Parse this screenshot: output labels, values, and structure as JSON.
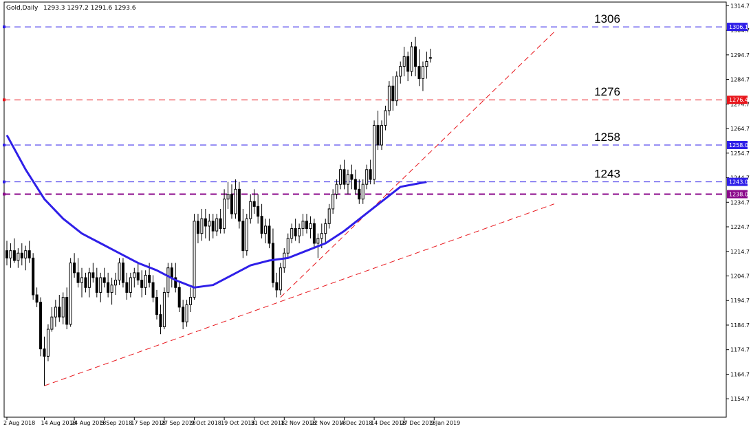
{
  "header": {
    "symbol": "Gold,Daily",
    "ohlc": "1293.3 1297.2 1291.6 1293.6"
  },
  "chart_data": {
    "type": "candlestick",
    "title": "Gold,Daily",
    "ylim": [
      1147.2,
      1316.2
    ],
    "grid": false,
    "y_ticks": [
      "1314.7",
      "1304.7",
      "1294.7",
      "1284.7",
      "1274.7",
      "1264.7",
      "1254.7",
      "1244.7",
      "1234.7",
      "1224.7",
      "1214.7",
      "1204.7",
      "1194.7",
      "1184.7",
      "1174.7",
      "1164.7",
      "1154.7"
    ],
    "x_ticks": [
      {
        "label": "2 Aug 2018",
        "bar": 0
      },
      {
        "label": "14 Aug 2018",
        "bar": 10
      },
      {
        "label": "24 Aug 2018",
        "bar": 18
      },
      {
        "label": "5 Sep 2018",
        "bar": 26
      },
      {
        "label": "17 Sep 2018",
        "bar": 34
      },
      {
        "label": "27 Sep 2018",
        "bar": 42
      },
      {
        "label": "9 Oct 2018",
        "bar": 50
      },
      {
        "label": "19 Oct 2018",
        "bar": 58
      },
      {
        "label": "31 Oct 2018",
        "bar": 66
      },
      {
        "label": "12 Nov 2018",
        "bar": 74
      },
      {
        "label": "22 Nov 2018",
        "bar": 82
      },
      {
        "label": "4 Dec 2018",
        "bar": 90
      },
      {
        "label": "14 Dec 2018",
        "bar": 98
      },
      {
        "label": "27 Dec 2018",
        "bar": 106
      },
      {
        "label": "9 Jan 2019",
        "bar": 114
      }
    ],
    "candles": [
      [
        1215,
        1219,
        1209,
        1212
      ],
      [
        1212,
        1218,
        1208,
        1215
      ],
      [
        1215,
        1220,
        1210,
        1211
      ],
      [
        1211,
        1216,
        1208,
        1214
      ],
      [
        1214,
        1218,
        1209,
        1212
      ],
      [
        1212,
        1217,
        1207,
        1215
      ],
      [
        1215,
        1219,
        1210,
        1212
      ],
      [
        1212,
        1214,
        1195,
        1197
      ],
      [
        1197,
        1200,
        1192,
        1194
      ],
      [
        1194,
        1196,
        1172,
        1175
      ],
      [
        1175,
        1180,
        1160,
        1172
      ],
      [
        1172,
        1185,
        1170,
        1183
      ],
      [
        1183,
        1192,
        1182,
        1188
      ],
      [
        1188,
        1195,
        1184,
        1192
      ],
      [
        1192,
        1197,
        1186,
        1188
      ],
      [
        1188,
        1198,
        1185,
        1196
      ],
      [
        1196,
        1200,
        1183,
        1185
      ],
      [
        1185,
        1212,
        1184,
        1210
      ],
      [
        1210,
        1214,
        1204,
        1206
      ],
      [
        1206,
        1212,
        1200,
        1202
      ],
      [
        1202,
        1208,
        1196,
        1204
      ],
      [
        1204,
        1206,
        1198,
        1200
      ],
      [
        1200,
        1208,
        1196,
        1206
      ],
      [
        1206,
        1210,
        1202,
        1204
      ],
      [
        1204,
        1208,
        1196,
        1198
      ],
      [
        1198,
        1206,
        1194,
        1204
      ],
      [
        1204,
        1208,
        1200,
        1202
      ],
      [
        1202,
        1206,
        1196,
        1198
      ],
      [
        1198,
        1204,
        1193,
        1201
      ],
      [
        1201,
        1206,
        1197,
        1203
      ],
      [
        1203,
        1212,
        1201,
        1210
      ],
      [
        1210,
        1212,
        1200,
        1202
      ],
      [
        1202,
        1206,
        1195,
        1198
      ],
      [
        1198,
        1206,
        1196,
        1204
      ],
      [
        1204,
        1208,
        1200,
        1206
      ],
      [
        1206,
        1210,
        1201,
        1203
      ],
      [
        1203,
        1207,
        1196,
        1200
      ],
      [
        1200,
        1207,
        1197,
        1205
      ],
      [
        1205,
        1210,
        1200,
        1202
      ],
      [
        1202,
        1205,
        1194,
        1196
      ],
      [
        1196,
        1199,
        1187,
        1189
      ],
      [
        1189,
        1193,
        1181,
        1184
      ],
      [
        1184,
        1200,
        1183,
        1198
      ],
      [
        1198,
        1210,
        1196,
        1208
      ],
      [
        1208,
        1210,
        1200,
        1204
      ],
      [
        1204,
        1210,
        1198,
        1200
      ],
      [
        1200,
        1202,
        1190,
        1192
      ],
      [
        1192,
        1195,
        1183,
        1186
      ],
      [
        1186,
        1195,
        1184,
        1193
      ],
      [
        1193,
        1200,
        1190,
        1196
      ],
      [
        1196,
        1230,
        1195,
        1227
      ],
      [
        1227,
        1230,
        1218,
        1222
      ],
      [
        1222,
        1232,
        1219,
        1228
      ],
      [
        1228,
        1232,
        1220,
        1225
      ],
      [
        1225,
        1230,
        1219,
        1227
      ],
      [
        1227,
        1230,
        1220,
        1223
      ],
      [
        1223,
        1230,
        1221,
        1228
      ],
      [
        1228,
        1232,
        1222,
        1224
      ],
      [
        1224,
        1240,
        1222,
        1236
      ],
      [
        1236,
        1243,
        1232,
        1238
      ],
      [
        1238,
        1242,
        1228,
        1230
      ],
      [
        1230,
        1244,
        1228,
        1240
      ],
      [
        1240,
        1243,
        1224,
        1227
      ],
      [
        1227,
        1232,
        1212,
        1215
      ],
      [
        1215,
        1230,
        1213,
        1228
      ],
      [
        1228,
        1238,
        1226,
        1235
      ],
      [
        1235,
        1240,
        1230,
        1233
      ],
      [
        1233,
        1238,
        1226,
        1229
      ],
      [
        1229,
        1234,
        1220,
        1222
      ],
      [
        1222,
        1228,
        1218,
        1225
      ],
      [
        1225,
        1228,
        1216,
        1218
      ],
      [
        1218,
        1224,
        1200,
        1202
      ],
      [
        1202,
        1206,
        1196,
        1199
      ],
      [
        1199,
        1210,
        1197,
        1208
      ],
      [
        1208,
        1216,
        1206,
        1214
      ],
      [
        1214,
        1222,
        1212,
        1220
      ],
      [
        1220,
        1226,
        1218,
        1224
      ],
      [
        1224,
        1228,
        1219,
        1221
      ],
      [
        1221,
        1226,
        1218,
        1224
      ],
      [
        1224,
        1230,
        1221,
        1227
      ],
      [
        1227,
        1230,
        1222,
        1224
      ],
      [
        1224,
        1229,
        1220,
        1226
      ],
      [
        1226,
        1228,
        1216,
        1218
      ],
      [
        1218,
        1222,
        1212,
        1220
      ],
      [
        1220,
        1226,
        1216,
        1222
      ],
      [
        1222,
        1228,
        1218,
        1226
      ],
      [
        1226,
        1234,
        1224,
        1232
      ],
      [
        1232,
        1240,
        1230,
        1238
      ],
      [
        1238,
        1244,
        1236,
        1242
      ],
      [
        1242,
        1250,
        1240,
        1248
      ],
      [
        1248,
        1252,
        1240,
        1242
      ],
      [
        1242,
        1248,
        1238,
        1246
      ],
      [
        1246,
        1250,
        1240,
        1244
      ],
      [
        1244,
        1248,
        1238,
        1240
      ],
      [
        1240,
        1244,
        1234,
        1236
      ],
      [
        1236,
        1244,
        1234,
        1242
      ],
      [
        1242,
        1250,
        1240,
        1248
      ],
      [
        1248,
        1252,
        1242,
        1244
      ],
      [
        1244,
        1268,
        1242,
        1266
      ],
      [
        1266,
        1272,
        1256,
        1258
      ],
      [
        1258,
        1268,
        1256,
        1266
      ],
      [
        1266,
        1274,
        1264,
        1272
      ],
      [
        1272,
        1284,
        1270,
        1282
      ],
      [
        1282,
        1286,
        1272,
        1276
      ],
      [
        1276,
        1288,
        1274,
        1286
      ],
      [
        1286,
        1292,
        1283,
        1290
      ],
      [
        1290,
        1298,
        1286,
        1294
      ],
      [
        1294,
        1296,
        1284,
        1288
      ],
      [
        1288,
        1300,
        1286,
        1298
      ],
      [
        1298,
        1302,
        1286,
        1290
      ],
      [
        1290,
        1297,
        1282,
        1285
      ],
      [
        1285,
        1292,
        1280,
        1290
      ],
      [
        1290,
        1296,
        1285,
        1292
      ],
      [
        1293.3,
        1297.2,
        1291.6,
        1293.6
      ]
    ],
    "ma_series": {
      "name": "",
      "color": "#2f1fe8",
      "values": [
        [
          0,
          1262
        ],
        [
          5,
          1248
        ],
        [
          10,
          1236
        ],
        [
          15,
          1228
        ],
        [
          20,
          1222
        ],
        [
          25,
          1218
        ],
        [
          30,
          1214
        ],
        [
          35,
          1210
        ],
        [
          40,
          1207
        ],
        [
          45,
          1203
        ],
        [
          50,
          1200
        ],
        [
          55,
          1201
        ],
        [
          60,
          1205
        ],
        [
          65,
          1209
        ],
        [
          70,
          1211
        ],
        [
          75,
          1212
        ],
        [
          80,
          1215
        ],
        [
          85,
          1218
        ],
        [
          90,
          1223
        ],
        [
          95,
          1229
        ],
        [
          100,
          1235
        ],
        [
          105,
          1241
        ],
        [
          112,
          1243
        ]
      ]
    },
    "hlines": [
      {
        "value": 1306.1,
        "badge": "1306.1",
        "annotation": "1306",
        "color": "#2f1fe8",
        "badge_color": "#2f1fe8"
      },
      {
        "value": 1276.4,
        "badge": "1276.4",
        "annotation": "1276",
        "color": "#e8161c",
        "badge_color": "#e8161c"
      },
      {
        "value": 1258.0,
        "badge": "1258.0",
        "annotation": "1258",
        "color": "#2f1fe8",
        "badge_color": "#2f1fe8"
      },
      {
        "value": 1243.0,
        "badge": "1243.0",
        "annotation": "1243",
        "color": "#2f1fe8",
        "badge_color": "#2f1fe8"
      },
      {
        "value": 1238.0,
        "badge": "1238.0",
        "annotation": "",
        "color": "#8b0a8b",
        "badge_color": "#8b0a8b"
      }
    ],
    "trendlines": [
      {
        "from": [
          10,
          1160
        ],
        "to": [
          146,
          1234
        ],
        "color": "#e8161c"
      },
      {
        "from": [
          73,
          1196
        ],
        "to": [
          146,
          1304
        ],
        "color": "#e8161c"
      }
    ],
    "colors": {
      "up": "#ffffff",
      "down": "#000000",
      "wick": "#000000",
      "border": "#000000"
    }
  }
}
